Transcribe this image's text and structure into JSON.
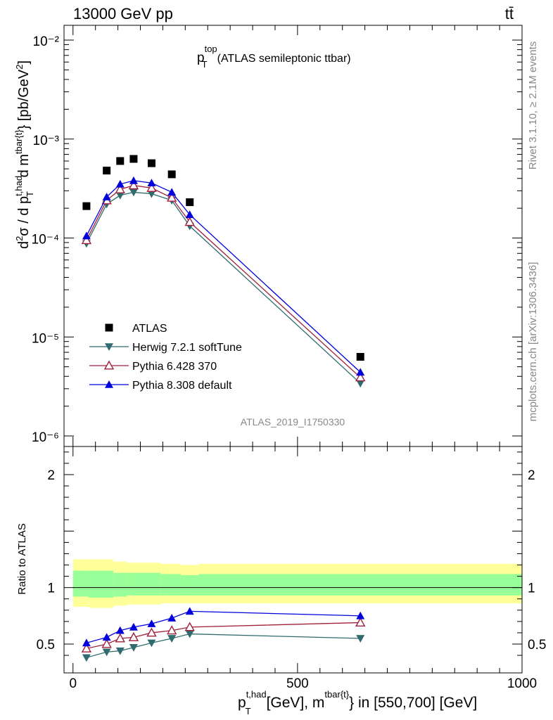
{
  "header": {
    "left": "13000 GeV pp",
    "right": "tt̄"
  },
  "side_labels": {
    "rivet": "Rivet 3.1.10, ≥ 2.1M events",
    "mcplots": "mcplots.cern.ch [arXiv:1306.3436]"
  },
  "chart_data": [
    {
      "type": "line",
      "panel": "main",
      "title_main": "p",
      "title_sup": "top",
      "title_sub": "T",
      "title_rest": "(ATLAS semileptonic ttbar)",
      "ylabel": "d²σ / d p_T^{t,had} d m^{tbar{t}} [pb/GeV²]",
      "yscale": "log",
      "ylim": [
        1e-06,
        0.013
      ],
      "xlim": [
        -20,
        1000
      ],
      "ytick_labels": [
        "10⁻⁶",
        "10⁻⁵",
        "10⁻⁴",
        "10⁻³",
        "10⁻²"
      ],
      "x": [
        30,
        75,
        105,
        135,
        175,
        220,
        260,
        640
      ],
      "series": [
        {
          "name": "ATLAS",
          "marker": "square",
          "color": "#000000",
          "values": [
            0.00021,
            0.00048,
            0.0006,
            0.00063,
            0.00057,
            0.00044,
            0.00023,
            6.3e-06
          ]
        },
        {
          "name": "Herwig 7.2.1 softTune",
          "marker": "triangle-down",
          "color": "#2f6b6f",
          "values": [
            8.8e-05,
            0.00022,
            0.00027,
            0.00029,
            0.00028,
            0.00024,
            0.000132,
            3.4e-06
          ]
        },
        {
          "name": "Pythia 6.428 370",
          "marker": "triangle-up-open",
          "color": "#a0203a",
          "values": [
            9.5e-05,
            0.00024,
            0.00031,
            0.00034,
            0.00032,
            0.000255,
            0.000145,
            3.9e-06
          ]
        },
        {
          "name": "Pythia 8.308 default",
          "marker": "triangle-up",
          "color": "#0000dd",
          "values": [
            0.000105,
            0.00026,
            0.00035,
            0.00038,
            0.00036,
            0.00029,
            0.000172,
            4.4e-06
          ]
        }
      ],
      "watermark": "ATLAS_2019_I1750330"
    },
    {
      "type": "line",
      "panel": "ratio",
      "ylabel": "Ratio to ATLAS",
      "ylim": [
        0.33,
        2.3
      ],
      "xlim": [
        -20,
        1000
      ],
      "ytick_labels": [
        "0.5",
        "1",
        "2"
      ],
      "xtick_labels": [
        "0",
        "500",
        "1000"
      ],
      "xlabel_main": "p",
      "xlabel_sup": "t,had",
      "xlabel_sub": "T",
      "xlabel_mid": "[GeV], m",
      "xlabel_sup2": "tbar{t}",
      "xlabel_rest": "} in [550,700] [GeV]",
      "bands": {
        "edges": [
          0,
          35,
          90,
          120,
          150,
          195,
          240,
          280,
          1000
        ],
        "yellow_low": [
          0.83,
          0.82,
          0.84,
          0.85,
          0.85,
          0.86,
          0.86,
          0.86
        ],
        "yellow_high": [
          1.25,
          1.25,
          1.23,
          1.22,
          1.22,
          1.21,
          1.2,
          1.21
        ],
        "green_low": [
          0.92,
          0.91,
          0.92,
          0.93,
          0.93,
          0.93,
          0.93,
          0.93
        ],
        "green_high": [
          1.15,
          1.15,
          1.13,
          1.13,
          1.13,
          1.12,
          1.11,
          1.12
        ]
      },
      "x": [
        30,
        75,
        105,
        135,
        175,
        220,
        260,
        640
      ],
      "series": [
        {
          "name": "Herwig 7.2.1 softTune",
          "marker": "triangle-down",
          "color": "#2f6b6f",
          "values": [
            0.38,
            0.43,
            0.44,
            0.47,
            0.51,
            0.55,
            0.59,
            0.55
          ]
        },
        {
          "name": "Pythia 6.428 370",
          "marker": "triangle-up-open",
          "color": "#a0203a",
          "values": [
            0.46,
            0.5,
            0.55,
            0.56,
            0.6,
            0.62,
            0.65,
            0.69
          ]
        },
        {
          "name": "Pythia 8.308 default",
          "marker": "triangle-up",
          "color": "#0000dd",
          "values": [
            0.51,
            0.56,
            0.62,
            0.65,
            0.68,
            0.73,
            0.79,
            0.75
          ]
        }
      ]
    }
  ]
}
